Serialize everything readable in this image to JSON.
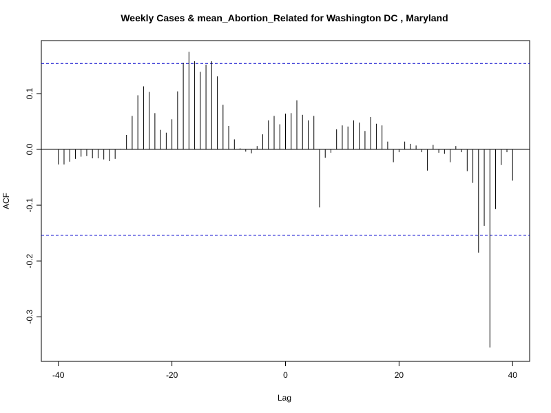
{
  "chart_data": {
    "type": "bar",
    "title": "Weekly Cases & mean_Abortion_Related for Washington DC , Maryland",
    "xlabel": "Lag",
    "ylabel": "ACF",
    "xlim": [
      -43,
      43
    ],
    "ylim": [
      -0.38,
      0.195
    ],
    "x_ticks": [
      -40,
      -20,
      0,
      20,
      40
    ],
    "x_tick_labels": [
      "-40",
      "-20",
      "0",
      "20",
      "40"
    ],
    "y_ticks": [
      -0.3,
      -0.2,
      -0.1,
      0.0,
      0.1
    ],
    "y_tick_labels": [
      "-0.3",
      "-0.2",
      "-0.1",
      "0.0",
      "0.1"
    ],
    "confidence_band": [
      0.154,
      -0.154
    ],
    "colors": {
      "bars": "#000000",
      "ci_line": "#0000cc",
      "zero_line": "#000000"
    },
    "grid": false,
    "lags": [
      -40,
      -39,
      -38,
      -37,
      -36,
      -35,
      -34,
      -33,
      -32,
      -31,
      -30,
      -29,
      -28,
      -27,
      -26,
      -25,
      -24,
      -23,
      -22,
      -21,
      -20,
      -19,
      -18,
      -17,
      -16,
      -15,
      -14,
      -13,
      -12,
      -11,
      -10,
      -9,
      -8,
      -7,
      -6,
      -5,
      -4,
      -3,
      -2,
      -1,
      0,
      1,
      2,
      3,
      4,
      5,
      6,
      7,
      8,
      9,
      10,
      11,
      12,
      13,
      14,
      15,
      16,
      17,
      18,
      19,
      20,
      21,
      22,
      23,
      24,
      25,
      26,
      27,
      28,
      29,
      30,
      31,
      32,
      33,
      34,
      35,
      36,
      37,
      38,
      39,
      40
    ],
    "values": [
      -0.027,
      -0.027,
      -0.022,
      -0.017,
      -0.013,
      -0.012,
      -0.016,
      -0.016,
      -0.018,
      -0.021,
      -0.017,
      0.001,
      0.026,
      0.06,
      0.097,
      0.113,
      0.103,
      0.065,
      0.035,
      0.03,
      0.054,
      0.104,
      0.155,
      0.175,
      0.158,
      0.139,
      0.152,
      0.158,
      0.131,
      0.08,
      0.042,
      0.018,
      0.002,
      -0.004,
      -0.007,
      0.006,
      0.027,
      0.052,
      0.06,
      0.045,
      0.064,
      0.065,
      0.088,
      0.062,
      0.052,
      0.06,
      -0.104,
      -0.015,
      -0.006,
      0.036,
      0.043,
      0.041,
      0.052,
      0.048,
      0.033,
      0.058,
      0.046,
      0.043,
      0.014,
      -0.023,
      -0.005,
      0.014,
      0.01,
      0.007,
      -0.005,
      -0.038,
      0.008,
      -0.006,
      -0.008,
      -0.023,
      0.006,
      -0.005,
      -0.039,
      -0.06,
      -0.185,
      -0.137,
      -0.355,
      -0.107,
      -0.028,
      -0.005,
      -0.056
    ]
  }
}
